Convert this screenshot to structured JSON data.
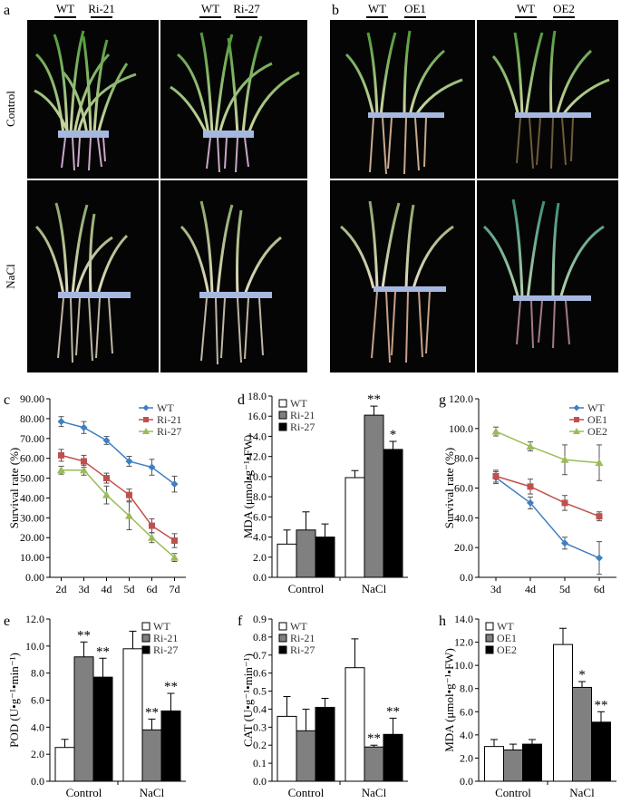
{
  "photo_panels": {
    "a": {
      "letter": "a",
      "row_labels": [
        "Control",
        "NaCl"
      ],
      "columns": [
        {
          "labels": [
            "WT",
            "Ri-21"
          ]
        },
        {
          "labels": [
            "WT",
            "Ri-27"
          ]
        }
      ]
    },
    "b": {
      "letter": "b",
      "columns": [
        {
          "labels": [
            "WT",
            "OE1"
          ]
        },
        {
          "labels": [
            "WT",
            "OE2"
          ]
        }
      ]
    }
  },
  "chart_data": [
    {
      "panel": "c",
      "type": "line",
      "ylabel": "Survival rate (%)",
      "xlabel": "",
      "categories": [
        "2d",
        "3d",
        "4d",
        "5d",
        "6d",
        "7d"
      ],
      "ylim": [
        0,
        90
      ],
      "yticks": [
        0,
        10,
        20,
        30,
        40,
        50,
        60,
        70,
        80,
        90
      ],
      "tick_decimals": 2,
      "legend_position": "top-right",
      "series": [
        {
          "name": "WT",
          "color": "#3f7fc2",
          "marker": "diamond",
          "values": [
            78.5,
            75.5,
            69,
            58.5,
            55.5,
            47
          ],
          "errors": [
            2.5,
            3,
            2,
            2.5,
            4,
            4
          ]
        },
        {
          "name": "Ri-21",
          "color": "#c0504d",
          "marker": "square",
          "values": [
            61.5,
            58.5,
            50,
            41.5,
            26,
            18.5
          ],
          "errors": [
            3,
            3,
            2.5,
            3,
            3.5,
            3.5
          ]
        },
        {
          "name": "Ri-27",
          "color": "#9bbb59",
          "marker": "triangle",
          "values": [
            54,
            54,
            41.5,
            31,
            20,
            10
          ],
          "errors": [
            2,
            2.5,
            4.5,
            7,
            2.5,
            2
          ]
        }
      ]
    },
    {
      "panel": "d",
      "type": "bar",
      "ylabel": "MDA (μmol•g⁻¹•FW)",
      "xlabel": "",
      "categories": [
        "Control",
        "NaCl"
      ],
      "ylim": [
        0,
        18
      ],
      "yticks": [
        0,
        2,
        4,
        6,
        8,
        10,
        12,
        14,
        16,
        18
      ],
      "tick_decimals": 1,
      "legend_position": "top-left",
      "series": [
        {
          "name": "WT",
          "color": "#ffffff",
          "values": [
            3.3,
            9.9
          ],
          "errors": [
            1.4,
            0.7
          ],
          "sig": [
            "",
            ""
          ]
        },
        {
          "name": "Ri-21",
          "color": "#808080",
          "values": [
            4.7,
            16.1
          ],
          "errors": [
            1.8,
            0.9
          ],
          "sig": [
            "",
            "**"
          ]
        },
        {
          "name": "Ri-27",
          "color": "#000000",
          "values": [
            4.0,
            12.7
          ],
          "errors": [
            1.3,
            0.8
          ],
          "sig": [
            "",
            "*"
          ]
        }
      ]
    },
    {
      "panel": "g",
      "type": "line",
      "ylabel": "Survival rate (%)",
      "xlabel": "",
      "categories": [
        "3d",
        "4d",
        "5d",
        "6d"
      ],
      "ylim": [
        0,
        120
      ],
      "yticks": [
        0,
        20,
        40,
        60,
        80,
        100,
        120
      ],
      "tick_decimals": 1,
      "legend_position": "top-right",
      "series": [
        {
          "name": "WT",
          "color": "#3f7fc2",
          "marker": "diamond",
          "values": [
            67,
            50,
            23,
            13
          ],
          "errors": [
            4,
            4,
            4,
            11
          ]
        },
        {
          "name": "OE1",
          "color": "#c0504d",
          "marker": "square",
          "values": [
            68,
            61,
            50,
            41
          ],
          "errors": [
            4,
            5,
            5,
            3
          ]
        },
        {
          "name": "OE2",
          "color": "#9bbb59",
          "marker": "triangle",
          "values": [
            98,
            88,
            79,
            77
          ],
          "errors": [
            3,
            3,
            10,
            12
          ]
        }
      ]
    },
    {
      "panel": "e",
      "type": "bar",
      "ylabel": "POD (U•g⁻¹•min⁻¹)",
      "xlabel": "",
      "categories": [
        "Control",
        "NaCl"
      ],
      "ylim": [
        0,
        12
      ],
      "yticks": [
        0,
        2,
        4,
        6,
        8,
        10,
        12
      ],
      "tick_decimals": 1,
      "legend_position": "top-right",
      "series": [
        {
          "name": "WT",
          "color": "#ffffff",
          "values": [
            2.5,
            9.8
          ],
          "errors": [
            0.6,
            1.3
          ],
          "sig": [
            "",
            ""
          ]
        },
        {
          "name": "Ri-21",
          "color": "#808080",
          "values": [
            9.2,
            3.8
          ],
          "errors": [
            1.1,
            0.8
          ],
          "sig": [
            "**",
            "**"
          ]
        },
        {
          "name": "Ri-27",
          "color": "#000000",
          "values": [
            7.7,
            5.2
          ],
          "errors": [
            1.4,
            1.3
          ],
          "sig": [
            "**",
            "**"
          ]
        }
      ]
    },
    {
      "panel": "f",
      "type": "bar",
      "ylabel": "CAT (U•g⁻¹•min⁻¹)",
      "xlabel": "",
      "categories": [
        "Control",
        "NaCl"
      ],
      "ylim": [
        0,
        0.9
      ],
      "yticks": [
        0,
        0.1,
        0.2,
        0.3,
        0.4,
        0.5,
        0.6,
        0.7,
        0.8,
        0.9
      ],
      "tick_decimals": 1,
      "legend_position": "top-left",
      "series": [
        {
          "name": "WT",
          "color": "#ffffff",
          "values": [
            0.36,
            0.63
          ],
          "errors": [
            0.11,
            0.16
          ],
          "sig": [
            "",
            ""
          ]
        },
        {
          "name": "Ri-21",
          "color": "#808080",
          "values": [
            0.28,
            0.19
          ],
          "errors": [
            0.12,
            0.01
          ],
          "sig": [
            "",
            "**"
          ]
        },
        {
          "name": "Ri-27",
          "color": "#000000",
          "values": [
            0.41,
            0.26
          ],
          "errors": [
            0.05,
            0.09
          ],
          "sig": [
            "",
            "**"
          ]
        }
      ]
    },
    {
      "panel": "h",
      "type": "bar",
      "ylabel": "MDA (μmol•g⁻¹•FW)",
      "xlabel": "",
      "categories": [
        "Control",
        "NaCl"
      ],
      "ylim": [
        0,
        14
      ],
      "yticks": [
        0,
        2,
        4,
        6,
        8,
        10,
        12,
        14
      ],
      "tick_decimals": 1,
      "legend_position": "top-left",
      "series": [
        {
          "name": "WT",
          "color": "#ffffff",
          "values": [
            3.0,
            11.8
          ],
          "errors": [
            0.6,
            1.4
          ],
          "sig": [
            "",
            ""
          ]
        },
        {
          "name": "OE1",
          "color": "#808080",
          "values": [
            2.7,
            8.1
          ],
          "errors": [
            0.5,
            0.5
          ],
          "sig": [
            "",
            "*"
          ]
        },
        {
          "name": "OE2",
          "color": "#000000",
          "values": [
            3.2,
            5.1
          ],
          "errors": [
            0.4,
            0.9
          ],
          "sig": [
            "",
            "**"
          ]
        }
      ]
    }
  ]
}
